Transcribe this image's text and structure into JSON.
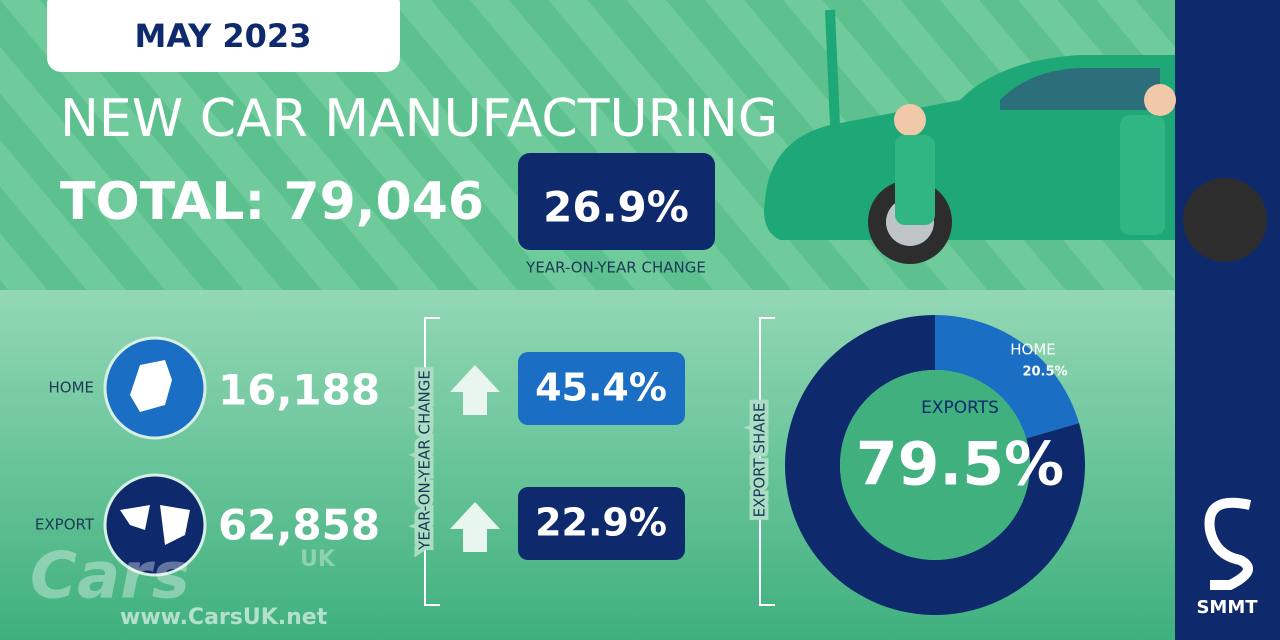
{
  "header": {
    "date": "MAY 2023",
    "title": "NEW CAR MANUFACTURING",
    "total": "TOTAL: 79,046",
    "change": "26.9%",
    "change_label": "YEAR-ON-YEAR CHANGE"
  },
  "breakdown": {
    "change_label": "YEAR-ON-YEAR CHANGE",
    "home": {
      "label": "HOME",
      "value": "16,188",
      "change": "45.4%"
    },
    "export": {
      "label": "EXPORT",
      "value": "62,858",
      "change": "22.9%"
    }
  },
  "chart_data": {
    "type": "pie",
    "title": "EXPORT SHARE",
    "categories": [
      "HOME",
      "EXPORTS"
    ],
    "values": [
      20.5,
      79.5
    ],
    "value_labels": [
      "20.5%",
      "79.5%"
    ],
    "colors": [
      "#1a6fc4",
      "#0e2a6c"
    ]
  },
  "watermark": {
    "logo": "Cars",
    "sub": "UK",
    "url": "www.CarsUK.net"
  },
  "brand": "SMMT"
}
